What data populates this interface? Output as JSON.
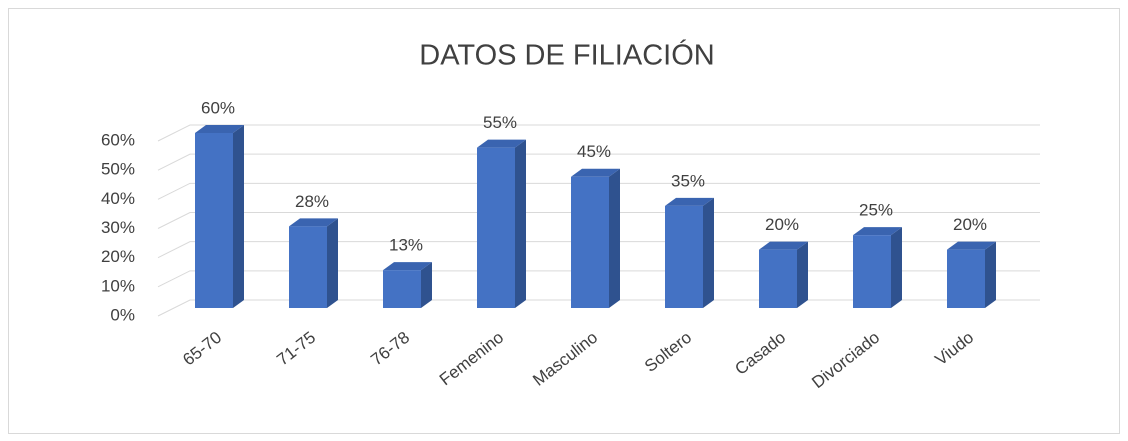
{
  "chart_data": {
    "type": "bar",
    "title": "DATOS DE FILIACIÓN",
    "categories": [
      "65-70",
      "71-75",
      "76-78",
      "Femenino",
      "Masculino",
      "Soltero",
      "Casado",
      "Divorciado",
      "Viudo"
    ],
    "values": [
      60,
      28,
      13,
      55,
      45,
      35,
      20,
      25,
      20
    ],
    "value_labels": [
      "60%",
      "28%",
      "13%",
      "55%",
      "45%",
      "35%",
      "20%",
      "25%",
      "20%"
    ],
    "color": "#4472c4",
    "ylim": [
      0,
      60
    ],
    "yticks": [
      {
        "value": 0,
        "label": "0%"
      },
      {
        "value": 10,
        "label": "10%"
      },
      {
        "value": 20,
        "label": "20%"
      },
      {
        "value": 30,
        "label": "30%"
      },
      {
        "value": 40,
        "label": "40%"
      },
      {
        "value": 50,
        "label": "50%"
      },
      {
        "value": 60,
        "label": "60%"
      }
    ],
    "grid": true
  }
}
